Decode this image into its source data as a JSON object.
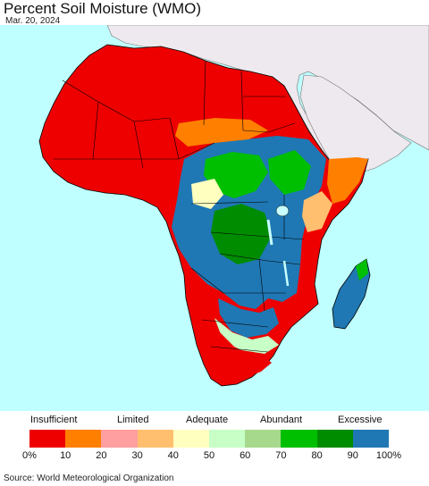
{
  "header": {
    "title": "Percent Soil Moisture (WMO)",
    "date": "Mar. 20, 2024"
  },
  "legend": {
    "categories": [
      "Insufficient",
      "Limited",
      "Adequate",
      "Abundant",
      "Excessive"
    ],
    "ticks": [
      "0%",
      "10",
      "20",
      "30",
      "40",
      "50",
      "60",
      "70",
      "80",
      "90",
      "100%"
    ],
    "colors": [
      "#ee0000",
      "#ff7f00",
      "#ff9f9f",
      "#ffbf6f",
      "#ffffbf",
      "#c7ffc7",
      "#a6d98c",
      "#00bf00",
      "#008c00",
      "#1f78b4"
    ]
  },
  "footer": {
    "source": "Source: World Meteorological Organization"
  },
  "map_colors": {
    "ocean": "#bfffff",
    "non_data_land": "#ede9ee",
    "border": "#000000"
  }
}
